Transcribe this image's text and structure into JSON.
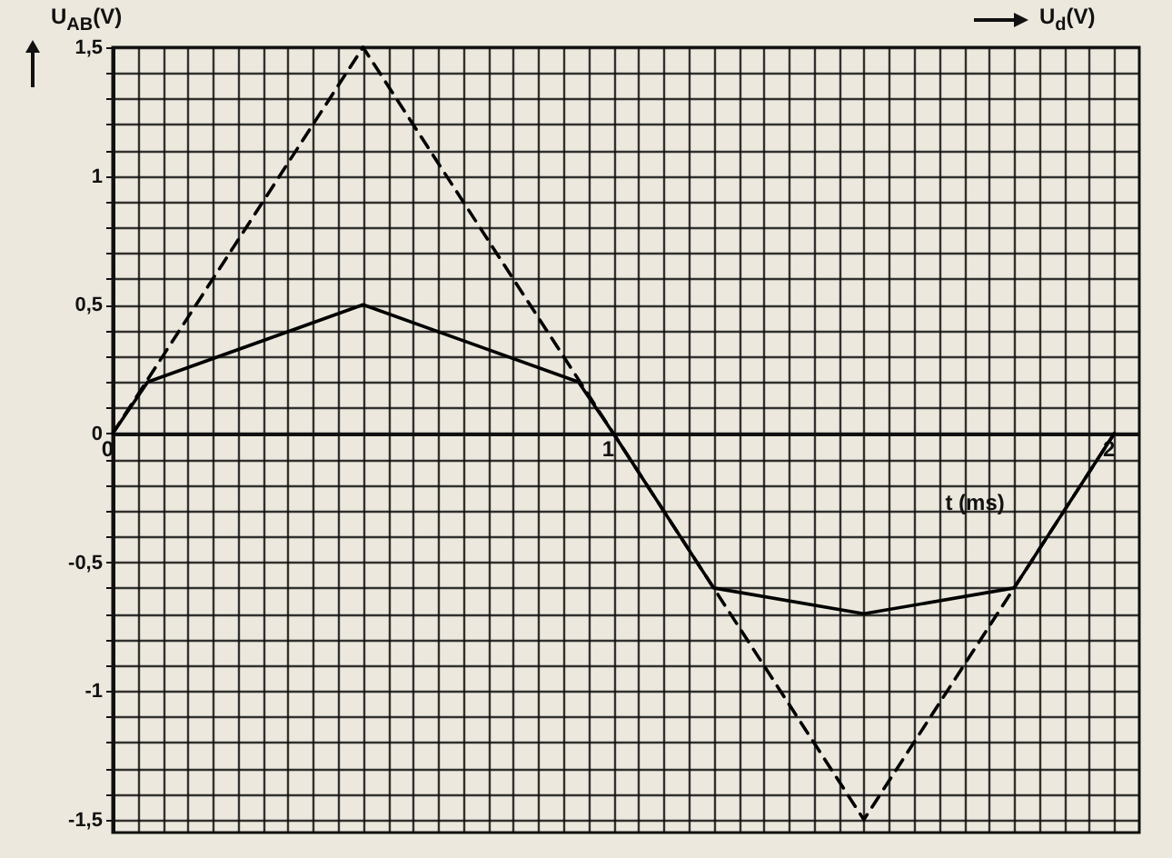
{
  "chart_data": {
    "type": "line",
    "xlabel": "t (ms)",
    "ylabel": "U$_{AB}$(V)",
    "annotations": [
      "U$_{d}$(V)"
    ],
    "xlim": [
      0,
      2.05
    ],
    "ylim": [
      -1.55,
      1.5
    ],
    "xticks": [
      0,
      {
        "value": 0.05,
        "label": null
      },
      {
        "value": 0.1,
        "label": null
      },
      {
        "value": 0.15,
        "label": null
      },
      {
        "value": 0.2,
        "label": null
      },
      {
        "value": 0.25,
        "label": null
      },
      {
        "value": 0.3,
        "label": null
      },
      {
        "value": 0.35,
        "label": null
      },
      {
        "value": 0.4,
        "label": null
      },
      {
        "value": 0.45,
        "label": null
      },
      {
        "value": 0.5,
        "label": null
      },
      {
        "value": 0.55,
        "label": null
      },
      {
        "value": 0.6,
        "label": null
      },
      {
        "value": 0.65,
        "label": null
      },
      {
        "value": 0.7,
        "label": null
      },
      {
        "value": 0.75,
        "label": null
      },
      {
        "value": 0.8,
        "label": null
      },
      {
        "value": 0.85,
        "label": null
      },
      {
        "value": 0.9,
        "label": null
      },
      {
        "value": 0.95,
        "label": null
      },
      1,
      {
        "value": 1.05,
        "label": null
      },
      {
        "value": 1.1,
        "label": null
      },
      {
        "value": 1.15,
        "label": null
      },
      {
        "value": 1.2,
        "label": null
      },
      {
        "value": 1.25,
        "label": null
      },
      {
        "value": 1.3,
        "label": null
      },
      {
        "value": 1.35,
        "label": null
      },
      {
        "value": 1.4,
        "label": null
      },
      {
        "value": 1.45,
        "label": null
      },
      {
        "value": 1.5,
        "label": null
      },
      {
        "value": 1.55,
        "label": null
      },
      {
        "value": 1.6,
        "label": null
      },
      {
        "value": 1.65,
        "label": null
      },
      {
        "value": 1.7,
        "label": null
      },
      {
        "value": 1.75,
        "label": null
      },
      {
        "value": 1.8,
        "label": null
      },
      {
        "value": 1.85,
        "label": null
      },
      {
        "value": 1.9,
        "label": null
      },
      {
        "value": 1.95,
        "label": null
      },
      2
    ],
    "yticks": [
      {
        "value": -1.5,
        "label": "-1,5"
      },
      {
        "value": -1.4,
        "label": null
      },
      {
        "value": -1.3,
        "label": null
      },
      {
        "value": -1.2,
        "label": null
      },
      {
        "value": -1.1,
        "label": null
      },
      -1,
      {
        "value": -0.9,
        "label": null
      },
      {
        "value": -0.8,
        "label": null
      },
      {
        "value": -0.7,
        "label": null
      },
      {
        "value": -0.6,
        "label": null
      },
      {
        "value": -0.5,
        "label": "-0,5"
      },
      {
        "value": -0.4,
        "label": null
      },
      {
        "value": -0.3,
        "label": null
      },
      {
        "value": -0.2,
        "label": null
      },
      {
        "value": -0.1,
        "label": null
      },
      0,
      {
        "value": 0.1,
        "label": null
      },
      {
        "value": 0.2,
        "label": null
      },
      {
        "value": 0.3,
        "label": null
      },
      {
        "value": 0.4,
        "label": null
      },
      {
        "value": 0.5,
        "label": "0,5"
      },
      {
        "value": 0.6,
        "label": null
      },
      {
        "value": 0.7,
        "label": null
      },
      {
        "value": 0.8,
        "label": null
      },
      {
        "value": 0.9,
        "label": null
      },
      1,
      {
        "value": 1.1,
        "label": null
      },
      {
        "value": 1.2,
        "label": null
      },
      {
        "value": 1.3,
        "label": null
      },
      {
        "value": 1.4,
        "label": null
      },
      {
        "value": 1.5,
        "label": "1,5"
      }
    ],
    "grid": true,
    "series": [
      {
        "color": "#000000",
        "line_style": "dashed",
        "x": [
          0,
          0.5,
          1,
          1.5,
          2
        ],
        "values": [
          0,
          1.5,
          0,
          -1.5,
          0
        ]
      },
      {
        "color": "#000000",
        "line_style": "solid",
        "x": [
          0,
          0.07,
          0.5,
          0.93,
          1,
          1.2,
          1.5,
          1.8,
          2
        ],
        "values": [
          0,
          0.2,
          0.5,
          0.2,
          0,
          -0.6,
          -0.7,
          -0.6,
          0
        ]
      }
    ]
  }
}
